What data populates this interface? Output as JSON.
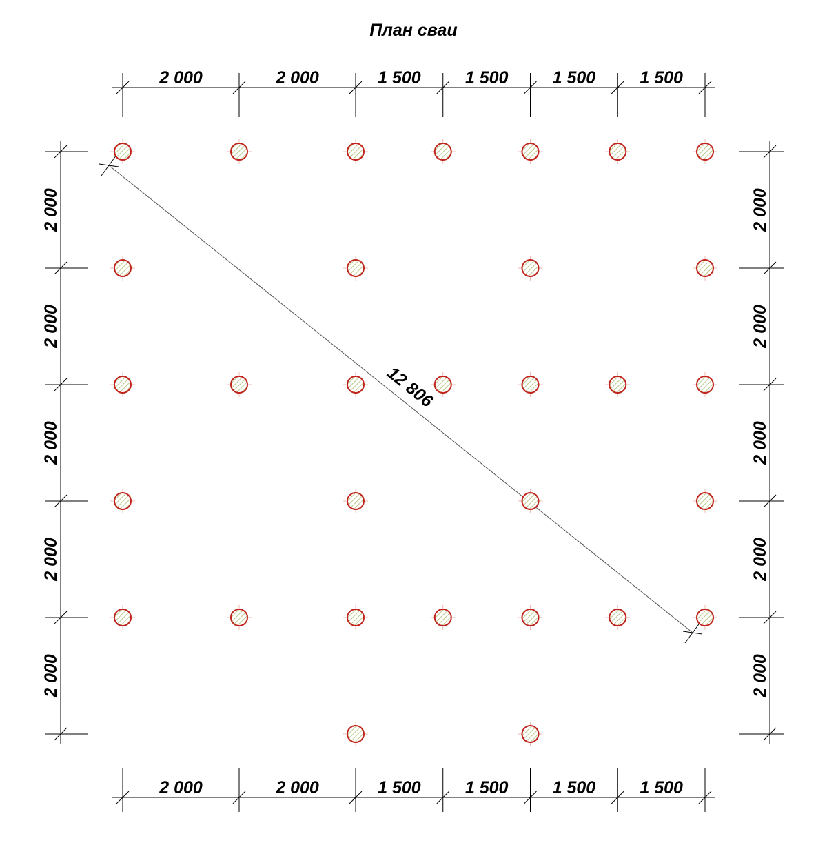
{
  "title": "План сваи",
  "colors": {
    "pile_outline": "#c0241c",
    "pile_cross": "#e88a80",
    "pile_hatch": "#b9c98a",
    "dimension_line": "#000000"
  },
  "icons": {
    "pile": "pile-circle-icon",
    "dimension_tick": "dimension-tick-icon"
  },
  "grid": {
    "x_spacings_mm": [
      2000,
      2000,
      1500,
      1500,
      1500,
      1500
    ],
    "y_spacings_mm": [
      2000,
      2000,
      2000,
      2000,
      2000
    ]
  },
  "dimensions": {
    "top": [
      "2 000",
      "2 000",
      "1 500",
      "1 500",
      "1 500",
      "1 500"
    ],
    "bottom": [
      "2 000",
      "2 000",
      "1 500",
      "1 500",
      "1 500",
      "1 500"
    ],
    "left": [
      "2 000",
      "2 000",
      "2 000",
      "2 000",
      "2 000"
    ],
    "right": [
      "2 000",
      "2 000",
      "2 000",
      "2 000",
      "2 000"
    ],
    "diagonal": "12 806"
  },
  "piles": [
    [
      0,
      0
    ],
    [
      1,
      0
    ],
    [
      2,
      0
    ],
    [
      3,
      0
    ],
    [
      4,
      0
    ],
    [
      5,
      0
    ],
    [
      6,
      0
    ],
    [
      0,
      1
    ],
    [
      2,
      1
    ],
    [
      4,
      1
    ],
    [
      6,
      1
    ],
    [
      0,
      2
    ],
    [
      1,
      2
    ],
    [
      2,
      2
    ],
    [
      3,
      2
    ],
    [
      4,
      2
    ],
    [
      5,
      2
    ],
    [
      6,
      2
    ],
    [
      0,
      3
    ],
    [
      2,
      3
    ],
    [
      4,
      3
    ],
    [
      6,
      3
    ],
    [
      0,
      4
    ],
    [
      1,
      4
    ],
    [
      2,
      4
    ],
    [
      3,
      4
    ],
    [
      4,
      4
    ],
    [
      5,
      4
    ],
    [
      6,
      4
    ],
    [
      2,
      5
    ],
    [
      4,
      5
    ]
  ]
}
